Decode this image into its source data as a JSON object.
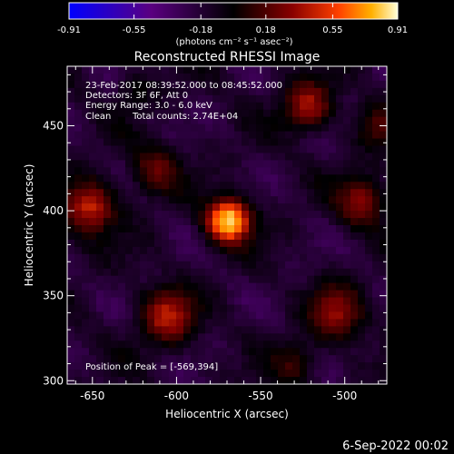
{
  "chart_data": {
    "type": "heatmap",
    "title": "Reconstructed RHESSI Image",
    "colorbar": {
      "unit_label": "(photons cm⁻² s⁻¹ asec⁻²)",
      "min": -0.91,
      "max": 0.91,
      "tick_labels": [
        "-0.91",
        "-0.55",
        "-0.18",
        "0.18",
        "0.55",
        "0.91"
      ]
    },
    "xlabel": "Heliocentric X (arcsec)",
    "ylabel": "Heliocentric Y (arcsec)",
    "xlim": [
      -665,
      -475
    ],
    "ylim": [
      298,
      485
    ],
    "x_ticks": [
      -650,
      -600,
      -550,
      -500
    ],
    "y_ticks": [
      300,
      350,
      400,
      450
    ],
    "annotations": {
      "time_range": "23-Feb-2017 08:39:52.000 to 08:45:52.000",
      "detectors": "Detectors: 3F 6F, Att 0",
      "energy": "Energy Range: 3.0 - 6.0 keV",
      "method": "Clean",
      "counts": "Total counts: 2.74E+04",
      "peak": "Position of Peak = [-569,394]"
    },
    "peak": {
      "x": -569,
      "y": 394,
      "value": 0.91
    },
    "sources": [
      {
        "x": -569,
        "y": 394,
        "amp": 1.0,
        "sigma": 9
      },
      {
        "x": -652,
        "y": 402,
        "amp": 0.55,
        "sigma": 11
      },
      {
        "x": -612,
        "y": 424,
        "amp": 0.35,
        "sigma": 10
      },
      {
        "x": -605,
        "y": 338,
        "amp": 0.55,
        "sigma": 11
      },
      {
        "x": -522,
        "y": 462,
        "amp": 0.5,
        "sigma": 10
      },
      {
        "x": -505,
        "y": 340,
        "amp": 0.45,
        "sigma": 11
      },
      {
        "x": -490,
        "y": 405,
        "amp": 0.45,
        "sigma": 10
      },
      {
        "x": -480,
        "y": 450,
        "amp": 0.3,
        "sigma": 9
      },
      {
        "x": -530,
        "y": 310,
        "amp": 0.25,
        "sigma": 9
      },
      {
        "x": -625,
        "y": 470,
        "amp": 0.15,
        "sigma": 8
      }
    ],
    "grid": false,
    "colormap": [
      "#0000ff",
      "#5a0080",
      "#000000",
      "#800000",
      "#ff4000",
      "#ffa000",
      "#ffffd0"
    ]
  },
  "footer_date": "6-Sep-2022 00:02"
}
